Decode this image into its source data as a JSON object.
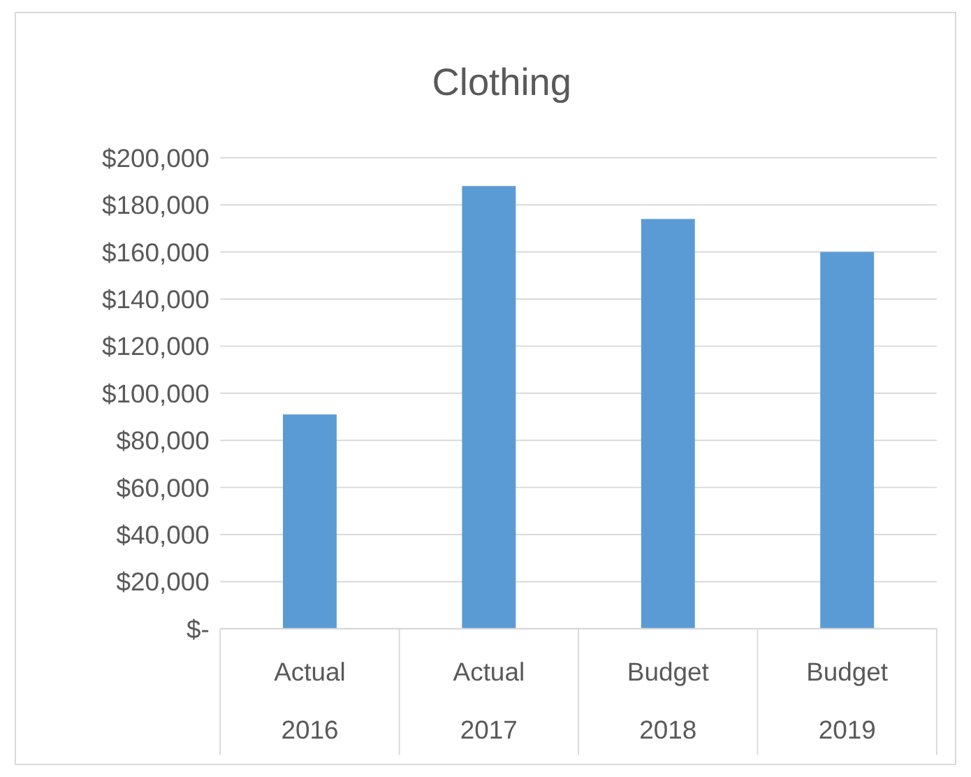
{
  "chart_data": {
    "type": "bar",
    "title": "Clothing",
    "categories": [
      "Actual\n2016",
      "Actual\n2017",
      "Budget\n2018",
      "Budget\n2019"
    ],
    "values": [
      91000,
      188000,
      174000,
      160000
    ],
    "color": "#5b9bd5",
    "ylim": [
      0,
      200000
    ],
    "yticks": [
      {
        "value": 0,
        "label": "$-"
      },
      {
        "value": 20000,
        "label": "$20,000"
      },
      {
        "value": 40000,
        "label": "$40,000"
      },
      {
        "value": 60000,
        "label": "$60,000"
      },
      {
        "value": 80000,
        "label": "$80,000"
      },
      {
        "value": 100000,
        "label": "$100,000"
      },
      {
        "value": 120000,
        "label": "$120,000"
      },
      {
        "value": 140000,
        "label": "$140,000"
      },
      {
        "value": 160000,
        "label": "$160,000"
      },
      {
        "value": 180000,
        "label": "$180,000"
      },
      {
        "value": 200000,
        "label": "$200,000"
      }
    ],
    "grid": true
  }
}
